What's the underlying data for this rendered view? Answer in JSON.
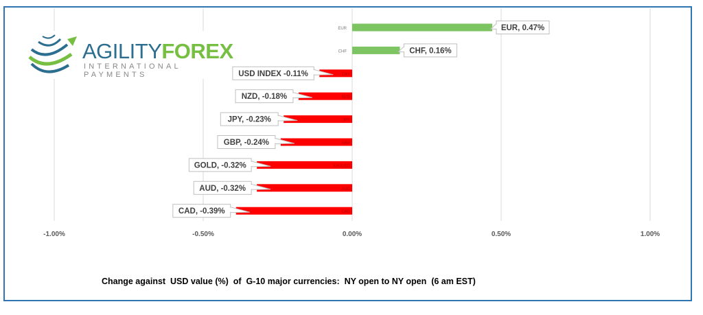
{
  "logo": {
    "brand_part1": "AGILITY",
    "brand_part2": "FOREX",
    "tagline": "INTERNATIONAL PAYMENTS"
  },
  "caption": "Change against  USD value (%)  of  G-10 major currencies:  NY open to NY open  (6 am EST)",
  "chart_data": {
    "type": "bar",
    "orientation": "horizontal",
    "categories": [
      "EUR",
      "CHF",
      "DXY",
      "NZD",
      "JPY",
      "GBP",
      "XAUUSD",
      "AUD",
      "CAD"
    ],
    "values": [
      0.47,
      0.16,
      -0.11,
      -0.18,
      -0.23,
      -0.24,
      -0.32,
      -0.32,
      -0.39
    ],
    "data_labels": [
      "EUR, 0.47%",
      "CHF, 0.16%",
      "USD INDEX -0.11%",
      "NZD, -0.18%",
      "JPY, -0.23%",
      "GBP, -0.24%",
      "GOLD, -0.32%",
      "AUD, -0.32%",
      "CAD, -0.39%"
    ],
    "xlim": [
      -1.0,
      1.0
    ],
    "x_ticks": [
      -1.0,
      -0.5,
      0.0,
      0.5,
      1.0
    ],
    "x_tick_labels": [
      "-1.00%",
      "-0.50%",
      "0.00%",
      "0.50%",
      "1.00%"
    ],
    "grid": "vertical",
    "colors": {
      "positive": "#7dc462",
      "negative": "#ff0000"
    },
    "xlabel": "",
    "ylabel": "",
    "title": ""
  }
}
